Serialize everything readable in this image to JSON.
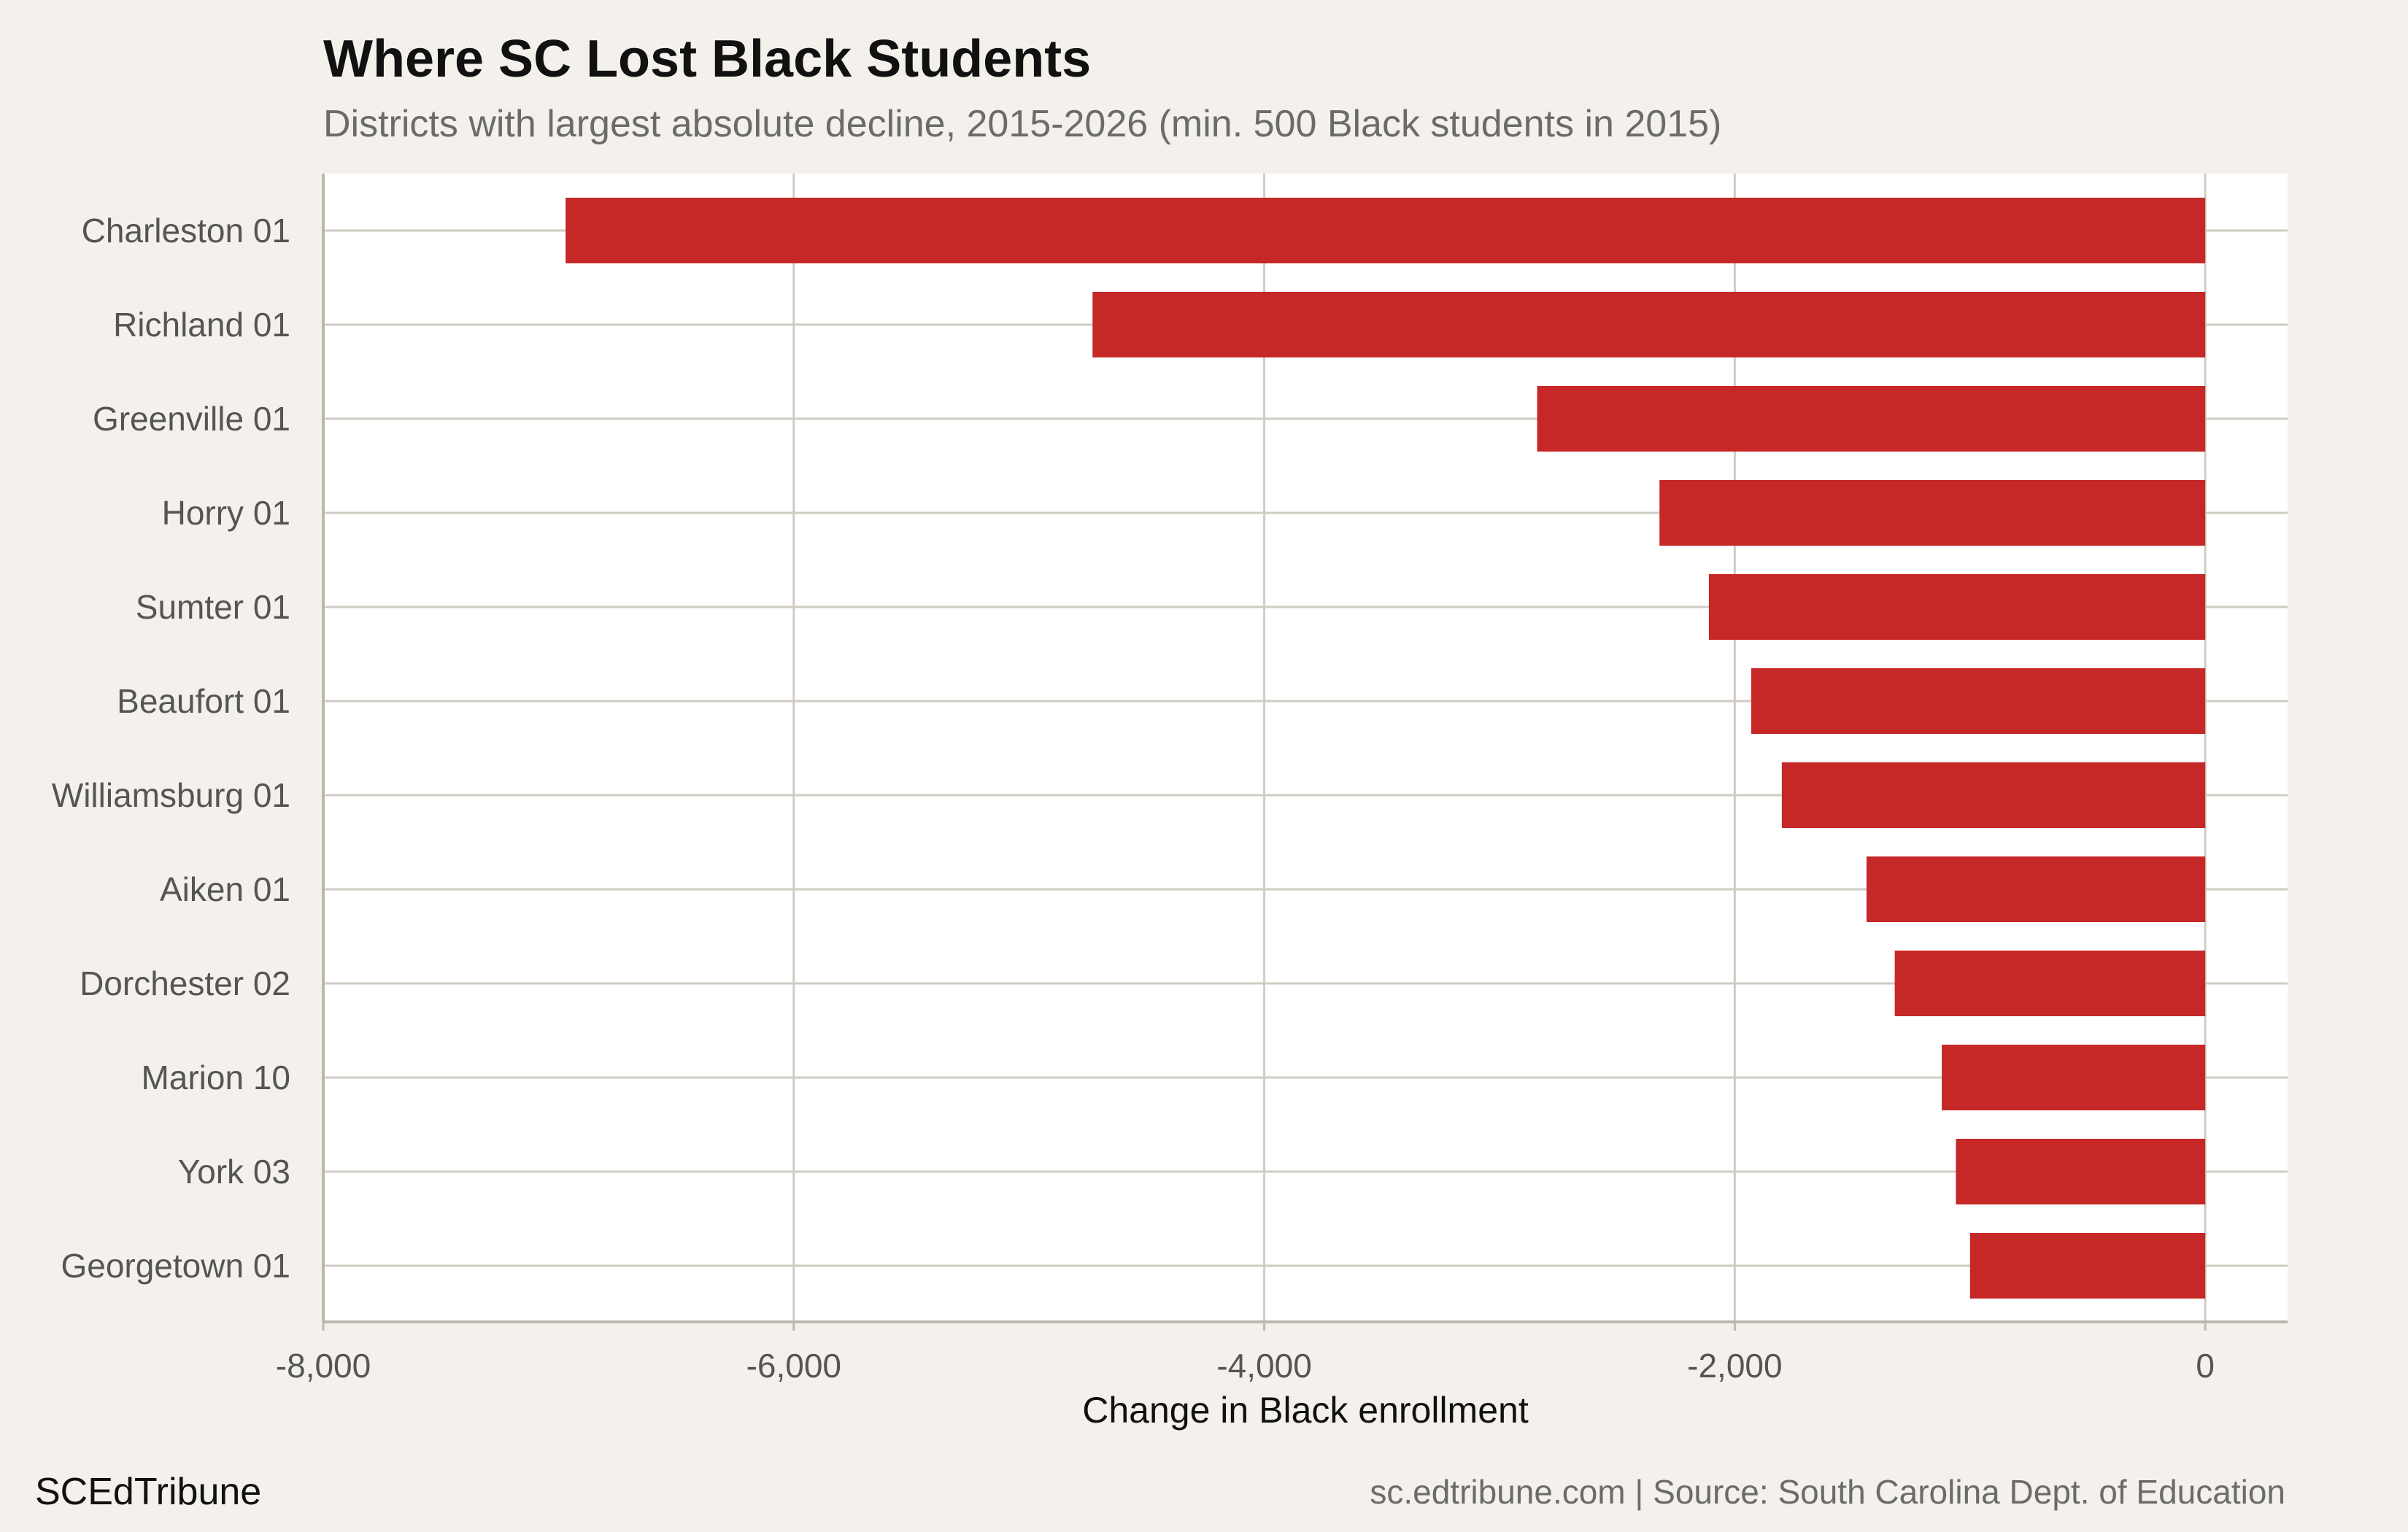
{
  "title": "Where SC Lost Black Students",
  "subtitle": "Districts with largest absolute decline, 2015-2026 (min. 500 Black students in 2015)",
  "brand": "SCEdTribune",
  "caption": "sc.edtribune.com | Source: South Carolina Dept. of Education",
  "colors": {
    "bar": "#c62828",
    "panel": "#ffffff",
    "background": "#f4f1ec",
    "grid": "#d0ccc4"
  },
  "chart_data": {
    "type": "bar",
    "orientation": "horizontal",
    "categories": [
      "Charleston 01",
      "Richland 01",
      "Greenville 01",
      "Horry 01",
      "Sumter 01",
      "Beaufort 01",
      "Williamsburg 01",
      "Aiken 01",
      "Dorchester 02",
      "Marion 10",
      "York 03",
      "Georgetown 01"
    ],
    "values": [
      -6970,
      -4730,
      -2840,
      -2320,
      -2110,
      -1930,
      -1800,
      -1440,
      -1320,
      -1120,
      -1060,
      -1000
    ],
    "xlabel": "Change in Black enrollment",
    "ylabel": "",
    "xlim": [
      -8000,
      350
    ],
    "xticks": [
      -8000,
      -6000,
      -4000,
      -2000,
      0
    ],
    "xtick_labels": [
      "-8,000",
      "-6,000",
      "-4,000",
      "-2,000",
      "0"
    ],
    "grid": true
  }
}
